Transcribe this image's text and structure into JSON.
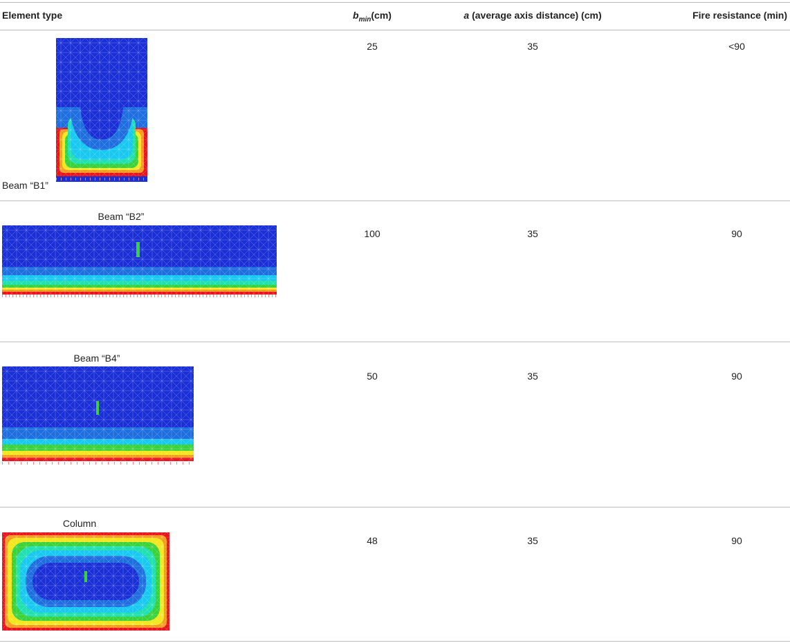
{
  "table": {
    "header": {
      "element_type": "Element type",
      "b_min": {
        "symbol": "b",
        "subscript": "min",
        "unit": "(cm)"
      },
      "a": {
        "symbol": "a",
        "description": "(average axis distance) (cm)"
      },
      "fire_resistance": "Fire resistance (min)"
    },
    "rows": [
      {
        "element": "Beam “B1”",
        "b_min": 25,
        "a": 35,
        "fire_resistance": "<90"
      },
      {
        "element": "Beam “B2”",
        "b_min": 100,
        "a": 35,
        "fire_resistance": 90
      },
      {
        "element": "Beam “B4”",
        "b_min": 50,
        "a": 35,
        "fire_resistance": 90
      },
      {
        "element": "Column",
        "b_min": 48,
        "a": 35,
        "fire_resistance": 90
      }
    ]
  }
}
